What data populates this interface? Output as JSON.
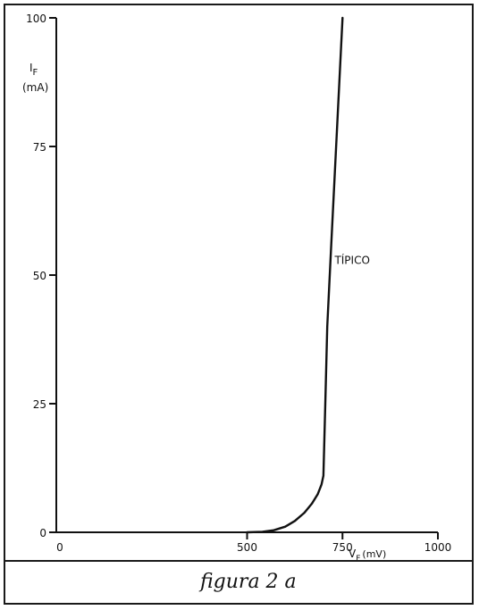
{
  "chart_data": {
    "type": "line",
    "title": "",
    "caption": "figura 2 a",
    "xlabel": {
      "main": "V",
      "sub": "F",
      "unit": "(mV)"
    },
    "ylabel": {
      "main": "I",
      "sub": "F",
      "unit": "(mA)"
    },
    "xlim": [
      0,
      1000
    ],
    "ylim": [
      0,
      100
    ],
    "xticks": [
      {
        "value": 0,
        "label": "0"
      },
      {
        "value": 500,
        "label": "500"
      },
      {
        "value": 750,
        "label": "750"
      },
      {
        "value": 1000,
        "label": "1000"
      }
    ],
    "yticks": [
      {
        "value": 0,
        "label": "0"
      },
      {
        "value": 25,
        "label": "25"
      },
      {
        "value": 50,
        "label": "50"
      },
      {
        "value": 75,
        "label": "75"
      },
      {
        "value": 100,
        "label": "100"
      }
    ],
    "grid": false,
    "series": [
      {
        "name": "TÍPICO",
        "x": [
          500,
          540,
          570,
          600,
          625,
          650,
          670,
          685,
          695,
          700,
          705,
          710,
          720,
          730,
          740,
          750
        ],
        "y": [
          0,
          0.1,
          0.4,
          1.1,
          2.2,
          3.8,
          5.6,
          7.4,
          9.3,
          11,
          25,
          40,
          55,
          70,
          85,
          100
        ]
      }
    ],
    "annotations": [
      {
        "text": "TÍPICO",
        "x": 720,
        "y": 53
      }
    ]
  }
}
